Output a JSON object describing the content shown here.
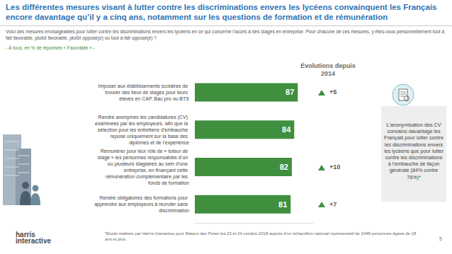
{
  "chart_data": {
    "type": "bar",
    "orientation": "horizontal",
    "title": "Les différentes mesures visant à lutter contre les discriminations envers les lycéens convainquent les Français encore davantage qu’il y a cinq ans, notamment sur les questions de formation et de rémunération",
    "question": "Voici des mesures envisageables pour lutter contre les discriminations envers les lycéens en ce qui concerne l’accès à des stages en entreprise. Pour chacune de ces mesures, y êtes-vous personnellement tout à fait favorable, plutôt favorable, plutôt opposé(e) ou tout à fait opposé(e) ?",
    "note": "- À tous, en % de réponses « Favorable » -",
    "categories": [
      "Imposer aux établissements scolaires de trouver des lieux de stages pour leurs élèves en CAP, Bac pro ou BTS",
      "Rendre anonymes les candidatures (CV) examinées par les employeurs, afin que la sélection pour les entretiens d’embauche repose uniquement sur la base des diplômes et de l’expérience",
      "Rémunérer pour leur rôle de « tuteur de stage » les personnes responsables d’un ou plusieurs stagiaires au sein d’une entreprise, en finançant cette rémunération complémentaire par les fonds de formation",
      "Rendre obligatoires des formations pour apprendre aux employeurs à recruter sans discrimination"
    ],
    "values": [
      87,
      84,
      82,
      81
    ],
    "color": "#3f8f3f",
    "xlim": [
      0,
      100
    ],
    "data_labels": true,
    "tick_labels": "y",
    "grid": false,
    "evolution_title": "Évolutions depuis 2014",
    "evolutions": [
      5,
      null,
      10,
      7
    ],
    "evolution_labels": [
      "+5",
      null,
      "+10",
      "+7"
    ],
    "side_note": "L’anonymisation des CV convainc davantage les Français pour lutter contre les discriminations envers les lycéens que pour lutter contre les discriminations à l’embauche de façon générale (84% contre 76%)*",
    "footnote": "*Etude réalisée par Harris Interactive pour Maison des Potes les 23 et 24 octobre 2018 auprès d’un échantillon national représentatif de 1048 personnes âgées de 18 ans et plus.",
    "page": 5,
    "logo": [
      "harris",
      "interactive"
    ]
  }
}
